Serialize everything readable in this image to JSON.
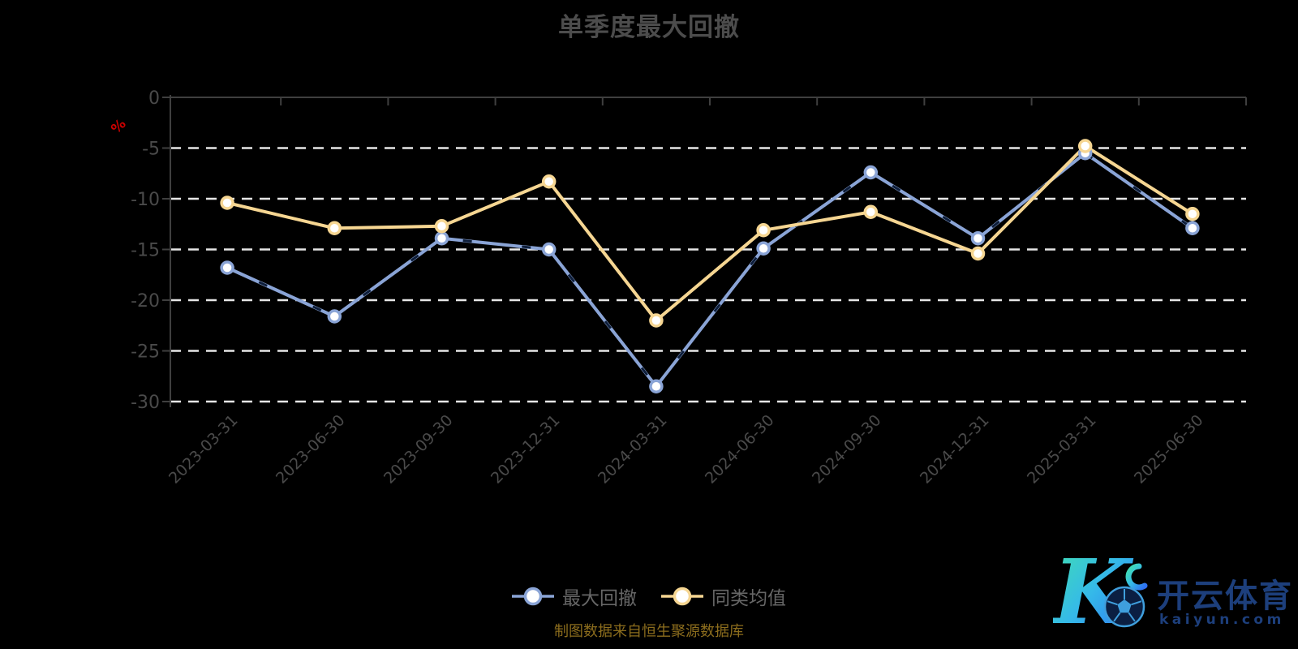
{
  "title": "单季度最大回撤",
  "axis": {
    "unit": "%",
    "y_tick_labels": [
      "0",
      "-5",
      "-10",
      "-15",
      "-20",
      "-25",
      "-30"
    ]
  },
  "legend": {
    "items": [
      {
        "label": "最大回撤",
        "color": "#8aa4d6"
      },
      {
        "label": "同类均值",
        "color": "#f6d692"
      }
    ]
  },
  "caption": "制图数据来自恒生聚源数据库",
  "watermark": {
    "brand": "开云体育",
    "domain": "kaiyun.com"
  },
  "colors": {
    "background": "#000000",
    "title": "#4c4c4c",
    "axis_line": "#3f3f3f",
    "axis_label": "#4a4a4a",
    "gridline": "#e6e6e6",
    "unit_label": "#cc0000",
    "legend_text": "#666666",
    "caption_text": "#8c6d1d",
    "series_blue": "#8aa4d6",
    "series_yellow": "#f6d692",
    "marker_fill": "#ffffff"
  },
  "chart_data": {
    "type": "line",
    "title": "单季度最大回撤",
    "ylabel": "%",
    "ylim": [
      -30,
      0
    ],
    "y_ticks": [
      0,
      -5,
      -10,
      -15,
      -20,
      -25,
      -30
    ],
    "grid": "horizontal-dashed",
    "legend_position": "bottom",
    "categories": [
      "2023-03-31",
      "2023-06-30",
      "2023-09-30",
      "2023-12-31",
      "2024-03-31",
      "2024-06-30",
      "2024-09-30",
      "2024-12-31",
      "2025-03-31",
      "2025-06-30"
    ],
    "series": [
      {
        "name": "最大回撤",
        "color": "#8aa4d6",
        "values": [
          -16.8,
          -21.6,
          -13.9,
          -15.0,
          -28.5,
          -14.9,
          -7.4,
          -13.9,
          -5.5,
          -12.9
        ]
      },
      {
        "name": "同类均值",
        "color": "#f6d692",
        "values": [
          -10.4,
          -12.9,
          -12.7,
          -8.3,
          -22.0,
          -13.1,
          -11.3,
          -15.4,
          -4.8,
          -11.5
        ]
      }
    ]
  }
}
